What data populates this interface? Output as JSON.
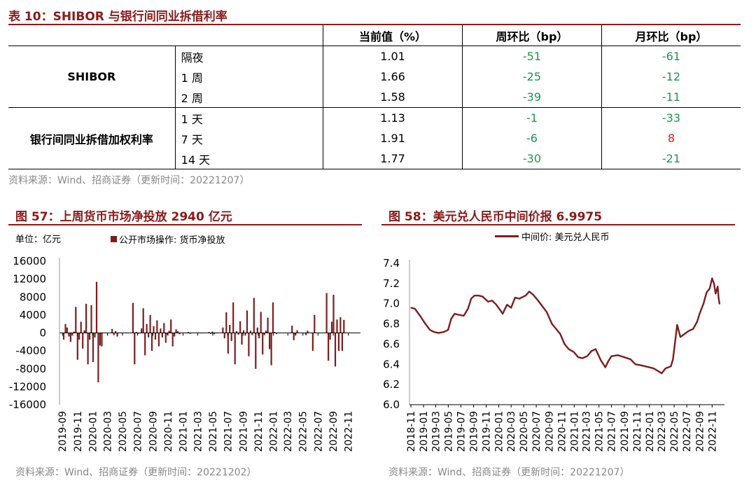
{
  "table10": {
    "title": "表 10：SHIBOR 与银行间同业拆借利率",
    "headers": [
      "当前值（%）",
      "周环比（bp）",
      "月环比（bp）"
    ],
    "groups": [
      {
        "name": "SHIBOR",
        "rows": [
          {
            "term": "隔夜",
            "value": "1.01",
            "wow": "-51",
            "mom": "-61"
          },
          {
            "term": "1 周",
            "value": "1.66",
            "wow": "-25",
            "mom": "-12"
          },
          {
            "term": "2 周",
            "value": "1.58",
            "wow": "-39",
            "mom": "-11"
          }
        ]
      },
      {
        "name": "银行间同业拆借加权利率",
        "rows": [
          {
            "term": "1 天",
            "value": "1.13",
            "wow": "-1",
            "mom": "-33"
          },
          {
            "term": "7 天",
            "value": "1.91",
            "wow": "-6",
            "mom": "8"
          },
          {
            "term": "14 天",
            "value": "1.77",
            "wow": "-30",
            "mom": "-21"
          }
        ]
      }
    ],
    "source": "资料来源：Wind、招商证券（更新时间：20221207）"
  },
  "fig57": {
    "title": "图 57：上周货币市场净投放 2940 亿元",
    "unit": "单位：亿元",
    "source": "资料来源：Wind、招商证券（更新时间：20221202）"
  },
  "fig58": {
    "title": "图 58：美元兑人民币中间价报 6.9975",
    "source": "资料来源：Wind、招商证券（更新时间：20221207）"
  },
  "colors": {
    "brand": "#8B1A1A",
    "bar": "#7B1E1E",
    "line": "#7B1E1E",
    "green": "#1a9850",
    "red": "#e41a1c"
  },
  "chart_data": [
    {
      "type": "bar",
      "legend": "公开市场操作: 货币净投放",
      "ylim": [
        -16000,
        16000
      ],
      "yticks": [
        16000,
        12000,
        8000,
        4000,
        0,
        -4000,
        -8000,
        -12000,
        -16000
      ],
      "xticks": [
        "2019-09",
        "2019-11",
        "2020-01",
        "2020-03",
        "2020-05",
        "2020-07",
        "2020-09",
        "2020-11",
        "2021-01",
        "2021-03",
        "2021-05",
        "2021-07",
        "2021-09",
        "2021-11",
        "2022-01",
        "2022-03",
        "2022-05",
        "2022-07",
        "2022-09",
        "2022-11"
      ],
      "x_start": "2019-09-06",
      "x_step_days": 7,
      "values": [
        -1500,
        2000,
        1200,
        -800,
        -2000,
        -600,
        300,
        5800,
        -6000,
        -1500,
        2500,
        -3500,
        600,
        6500,
        -7000,
        -1500,
        6200,
        -6500,
        -1000,
        11400,
        -11000,
        -2800,
        -3000,
        0,
        0,
        0,
        0,
        0,
        900,
        -500,
        400,
        -800,
        0,
        0,
        0,
        0,
        100,
        -100,
        0,
        0,
        6700,
        -7000,
        200,
        -200,
        0,
        1000,
        5500,
        -5000,
        2000,
        -1000,
        4000,
        -4000,
        1500,
        -1500,
        2800,
        -3000,
        1000,
        -1000,
        2200,
        -2200,
        -500,
        500,
        3000,
        -3000,
        -800,
        800,
        400,
        -300,
        0,
        0,
        100,
        -100,
        200,
        -200,
        0,
        0,
        0,
        0,
        100,
        -100,
        -100,
        100,
        0,
        0,
        200,
        -200,
        300,
        -300,
        0,
        0,
        0,
        0,
        1200,
        -1200,
        4600,
        -4600,
        1800,
        -1800,
        6800,
        -7000,
        400,
        -400,
        2600,
        -2600,
        600,
        -600,
        5000,
        -5200,
        500,
        -500,
        7800,
        -8000,
        1200,
        -1200,
        4700,
        -4800,
        -500,
        500,
        3400,
        -3600,
        -7200,
        6800,
        200,
        -200,
        0,
        0,
        0,
        0,
        0,
        0,
        0,
        0,
        1600,
        -1600,
        -600,
        600,
        0,
        0,
        0,
        0,
        -500,
        500,
        0,
        0,
        -4000,
        4000,
        0,
        0,
        0,
        0,
        0,
        0,
        8900,
        -6200,
        -1500,
        2500,
        8500,
        -7500,
        3000,
        -4000,
        3500,
        -4000,
        2900
      ]
    },
    {
      "type": "line",
      "legend": "中间价: 美元兑人民币",
      "ylim": [
        6.0,
        7.4
      ],
      "yticks": [
        7.4,
        7.2,
        7.0,
        6.8,
        6.6,
        6.4,
        6.2,
        6.0
      ],
      "xticks": [
        "2018-11",
        "2019-01",
        "2019-03",
        "2019-05",
        "2019-07",
        "2019-09",
        "2019-11",
        "2020-01",
        "2020-03",
        "2020-05",
        "2020-07",
        "2020-09",
        "2020-11",
        "2021-01",
        "2021-03",
        "2021-05",
        "2021-07",
        "2021-09",
        "2021-11",
        "2022-01",
        "2022-03",
        "2022-05",
        "2022-07",
        "2022-09",
        "2022-11"
      ],
      "points": [
        [
          "2018-11-01",
          6.96
        ],
        [
          "2018-11-20",
          6.95
        ],
        [
          "2018-12-15",
          6.88
        ],
        [
          "2019-01-10",
          6.8
        ],
        [
          "2019-02-01",
          6.74
        ],
        [
          "2019-02-20",
          6.72
        ],
        [
          "2019-03-15",
          6.71
        ],
        [
          "2019-04-10",
          6.72
        ],
        [
          "2019-04-30",
          6.74
        ],
        [
          "2019-05-15",
          6.85
        ],
        [
          "2019-06-01",
          6.9
        ],
        [
          "2019-06-20",
          6.89
        ],
        [
          "2019-07-15",
          6.88
        ],
        [
          "2019-08-05",
          6.95
        ],
        [
          "2019-08-20",
          7.05
        ],
        [
          "2019-09-05",
          7.08
        ],
        [
          "2019-09-25",
          7.08
        ],
        [
          "2019-10-15",
          7.07
        ],
        [
          "2019-11-10",
          7.02
        ],
        [
          "2019-11-30",
          7.03
        ],
        [
          "2019-12-20",
          6.99
        ],
        [
          "2020-01-10",
          6.93
        ],
        [
          "2020-01-20",
          6.9
        ],
        [
          "2020-02-10",
          6.99
        ],
        [
          "2020-03-01",
          6.96
        ],
        [
          "2020-03-20",
          7.06
        ],
        [
          "2020-04-10",
          7.05
        ],
        [
          "2020-05-10",
          7.08
        ],
        [
          "2020-05-28",
          7.12
        ],
        [
          "2020-06-15",
          7.09
        ],
        [
          "2020-07-10",
          7.03
        ],
        [
          "2020-08-01",
          6.97
        ],
        [
          "2020-08-20",
          6.92
        ],
        [
          "2020-09-15",
          6.8
        ],
        [
          "2020-10-05",
          6.75
        ],
        [
          "2020-10-25",
          6.7
        ],
        [
          "2020-11-15",
          6.6
        ],
        [
          "2020-12-05",
          6.55
        ],
        [
          "2020-12-31",
          6.52
        ],
        [
          "2021-01-20",
          6.47
        ],
        [
          "2021-02-10",
          6.46
        ],
        [
          "2021-03-05",
          6.48
        ],
        [
          "2021-03-25",
          6.53
        ],
        [
          "2021-04-15",
          6.55
        ],
        [
          "2021-05-10",
          6.44
        ],
        [
          "2021-06-01",
          6.37
        ],
        [
          "2021-06-15",
          6.43
        ],
        [
          "2021-07-01",
          6.48
        ],
        [
          "2021-08-01",
          6.49
        ],
        [
          "2021-09-01",
          6.47
        ],
        [
          "2021-10-01",
          6.45
        ],
        [
          "2021-10-25",
          6.4
        ],
        [
          "2021-11-20",
          6.39
        ],
        [
          "2021-12-31",
          6.37
        ],
        [
          "2022-01-20",
          6.36
        ],
        [
          "2022-02-15",
          6.33
        ],
        [
          "2022-03-01",
          6.31
        ],
        [
          "2022-03-20",
          6.36
        ],
        [
          "2022-04-15",
          6.38
        ],
        [
          "2022-04-25",
          6.45
        ],
        [
          "2022-05-10",
          6.7
        ],
        [
          "2022-05-15",
          6.79
        ],
        [
          "2022-05-31",
          6.67
        ],
        [
          "2022-06-20",
          6.7
        ],
        [
          "2022-07-10",
          6.73
        ],
        [
          "2022-08-01",
          6.75
        ],
        [
          "2022-08-20",
          6.82
        ],
        [
          "2022-09-01",
          6.9
        ],
        [
          "2022-09-20",
          7.0
        ],
        [
          "2022-10-05",
          7.11
        ],
        [
          "2022-10-20",
          7.15
        ],
        [
          "2022-11-01",
          7.25
        ],
        [
          "2022-11-10",
          7.2
        ],
        [
          "2022-11-18",
          7.1
        ],
        [
          "2022-11-28",
          7.17
        ],
        [
          "2022-12-02",
          7.06
        ],
        [
          "2022-12-07",
          6.9975
        ]
      ]
    }
  ]
}
